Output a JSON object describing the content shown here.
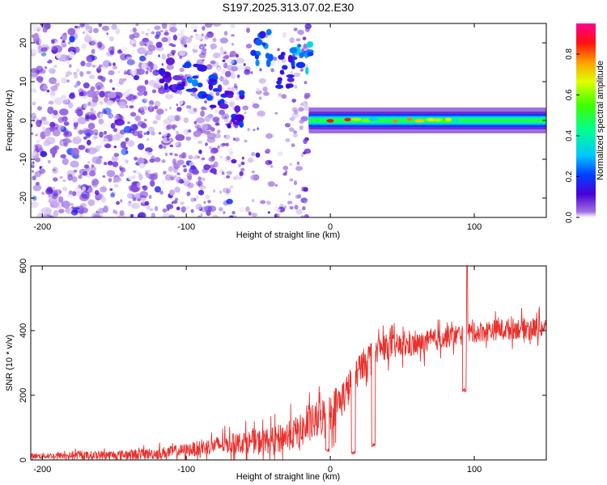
{
  "title": "S197.2025.313.07.02.E30",
  "chart_data": [
    {
      "type": "heatmap",
      "name": "spectrogram",
      "xlabel": "Height of straight line (km)",
      "ylabel": "Frequency (Hz)",
      "xlim": [
        -208,
        150
      ],
      "ylim": [
        -25,
        25
      ],
      "xticks": [
        -200,
        -100,
        0,
        100
      ],
      "yticks": [
        -20,
        -10,
        0,
        10,
        20
      ],
      "colorbar": {
        "label": "Normalized spectral amplitude",
        "range": [
          0,
          0.95
        ],
        "ticks": [
          0.0,
          0.2,
          0.4,
          0.6,
          0.8
        ],
        "tick_labels": [
          "0.0",
          "0.2",
          "0.4",
          "0.6",
          "0.8"
        ]
      },
      "features": {
        "steady_line_frequency_hz": 0,
        "steady_line_start_km": -15,
        "steady_line_end_km": 150,
        "steady_line_amplitude_range": [
          0.3,
          0.9
        ],
        "noisy_region_end_km": -15,
        "noise_amplitude_range": [
          0.0,
          0.15
        ],
        "bright_patches": [
          {
            "x_km": -48,
            "freq_hz": 19,
            "amplitude": 0.25
          },
          {
            "x_km": -20,
            "freq_hz": 16,
            "amplitude": 0.35
          },
          {
            "x_km": -30,
            "freq_hz": 13,
            "amplitude": 0.2
          },
          {
            "x_km": -95,
            "freq_hz": 11,
            "amplitude": 0.25
          },
          {
            "x_km": -80,
            "freq_hz": 8,
            "amplitude": 0.2
          },
          {
            "x_km": -68,
            "freq_hz": 3,
            "amplitude": 0.2
          },
          {
            "x_km": -110,
            "freq_hz": 11,
            "amplitude": 0.15
          }
        ],
        "line_hotspots_km": [
          0,
          5,
          12,
          18,
          25,
          30,
          45,
          55,
          62,
          70,
          75,
          80,
          82,
          87
        ]
      }
    },
    {
      "type": "line",
      "name": "snr",
      "xlabel": "Height of straight line (km)",
      "ylabel": "SNR (10 * v/v)",
      "xlim": [
        -208,
        150
      ],
      "ylim": [
        0,
        600
      ],
      "xticks": [
        -200,
        -100,
        0,
        100
      ],
      "yticks": [
        0,
        200,
        400,
        600
      ],
      "color": "#e8302c",
      "trend": {
        "x": [
          -208,
          -150,
          -120,
          -100,
          -80,
          -60,
          -40,
          -20,
          -10,
          0,
          10,
          20,
          30,
          40,
          60,
          80,
          100,
          120,
          150
        ],
        "y": [
          12,
          15,
          20,
          30,
          45,
          55,
          60,
          90,
          120,
          150,
          200,
          280,
          340,
          350,
          355,
          380,
          395,
          405,
          410
        ]
      },
      "noise_amplitude": {
        "x": [
          -208,
          -100,
          -40,
          0,
          30,
          60,
          100,
          150
        ],
        "y": [
          10,
          25,
          50,
          80,
          50,
          45,
          40,
          40
        ]
      },
      "dips": [
        {
          "x_km": -2,
          "y": 25
        },
        {
          "x_km": 16,
          "y": 15
        },
        {
          "x_km": 30,
          "y": 40
        },
        {
          "x_km": 93,
          "y": 210
        }
      ],
      "spikes": [
        {
          "x_km": 95,
          "y": 598
        }
      ]
    }
  ]
}
